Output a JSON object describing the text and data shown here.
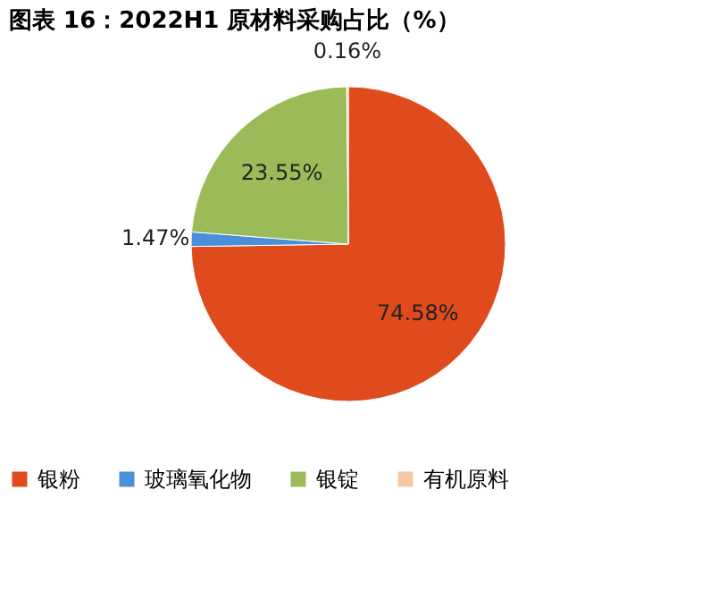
{
  "chart_data": {
    "type": "pie",
    "title": "图表 16：2022H1 原材料采购占比（%）",
    "categories": [
      "银粉",
      "玻璃氧化物",
      "银锭",
      "有机原料"
    ],
    "values": [
      74.58,
      1.47,
      23.55,
      0.16
    ],
    "colors": [
      "#e04b1e",
      "#4a90d9",
      "#9bbb59",
      "#f5c9a5"
    ],
    "value_labels": [
      "74.58%",
      "1.47%",
      "23.55%",
      "0.16%"
    ],
    "legend": "bottom"
  }
}
